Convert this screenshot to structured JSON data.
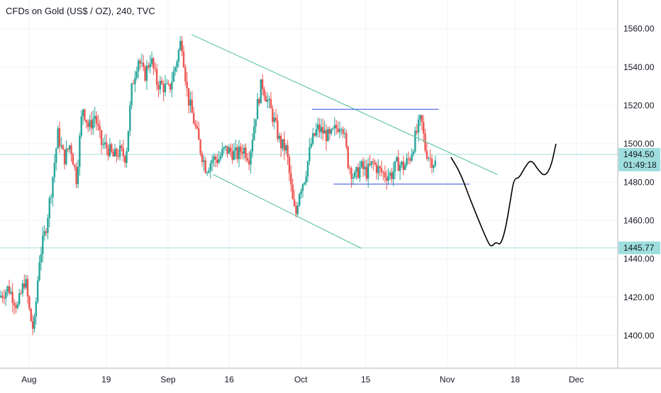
{
  "header": {
    "title": "CFDs on Gold (US$ / OZ), 240, TVC"
  },
  "colors": {
    "up_candle": "#26a69a",
    "down_candle": "#ef5350",
    "channel_line": "#66c7a0",
    "range_line": "#5b6ee6",
    "horizontal_level": "#9fdede",
    "projection": "#000000",
    "price_tag": "#9fdede",
    "grid": "#f0f3fa",
    "axis_text": "#131722"
  },
  "chart_data": {
    "type": "candlestick",
    "title": "CFDs on Gold (US$ / OZ), 240, TVC",
    "y_axis": {
      "position": "right",
      "range": [
        1383,
        1575
      ],
      "ticks": [
        1400,
        1420,
        1440,
        1460,
        1480,
        1500,
        1520,
        1540,
        1560
      ]
    },
    "x_axis": {
      "range": [
        0,
        100
      ],
      "ticks": [
        {
          "label": "Aug",
          "x": 4.7
        },
        {
          "label": "19",
          "x": 17.2
        },
        {
          "label": "Sep",
          "x": 27.2
        },
        {
          "label": "16",
          "x": 37.1
        },
        {
          "label": "Oct",
          "x": 48.7
        },
        {
          "label": "15",
          "x": 59.2
        },
        {
          "label": "Nov",
          "x": 72.4
        },
        {
          "label": "18",
          "x": 83.4
        },
        {
          "label": "Dec",
          "x": 93.3
        }
      ]
    },
    "price_labels": [
      {
        "value": "1494.50",
        "price": 1494.5
      },
      {
        "value": "01:49:18",
        "price": 1489.0
      },
      {
        "value": "1445.77",
        "price": 1445.77
      }
    ],
    "horizontal_levels": [
      1494.5,
      1445.77
    ],
    "key_points": [
      [
        0.0,
        1420
      ],
      [
        1.5,
        1425
      ],
      [
        3.0,
        1415
      ],
      [
        4.2,
        1430
      ],
      [
        5.0,
        1410
      ],
      [
        5.6,
        1402
      ],
      [
        6.5,
        1440
      ],
      [
        7.5,
        1455
      ],
      [
        8.5,
        1478
      ],
      [
        9.5,
        1505
      ],
      [
        10.5,
        1492
      ],
      [
        11.5,
        1500
      ],
      [
        12.5,
        1482
      ],
      [
        13.5,
        1520
      ],
      [
        14.5,
        1508
      ],
      [
        15.5,
        1515
      ],
      [
        16.5,
        1500
      ],
      [
        17.5,
        1498
      ],
      [
        18.5,
        1493
      ],
      [
        19.5,
        1496
      ],
      [
        20.5,
        1493
      ],
      [
        21.5,
        1530
      ],
      [
        22.5,
        1545
      ],
      [
        23.5,
        1535
      ],
      [
        24.5,
        1545
      ],
      [
        25.5,
        1532
      ],
      [
        26.5,
        1530
      ],
      [
        27.5,
        1528
      ],
      [
        28.5,
        1540
      ],
      [
        29.5,
        1555
      ],
      [
        30.5,
        1525
      ],
      [
        31.5,
        1512
      ],
      [
        32.5,
        1498
      ],
      [
        33.5,
        1487
      ],
      [
        34.5,
        1492
      ],
      [
        35.5,
        1492
      ],
      [
        36.5,
        1497
      ],
      [
        37.5,
        1496
      ],
      [
        38.5,
        1494
      ],
      [
        39.5,
        1498
      ],
      [
        40.5,
        1493
      ],
      [
        41.5,
        1515
      ],
      [
        42.5,
        1532
      ],
      [
        43.5,
        1522
      ],
      [
        44.5,
        1512
      ],
      [
        45.5,
        1500
      ],
      [
        46.5,
        1497
      ],
      [
        47.5,
        1470
      ],
      [
        48.0,
        1462
      ],
      [
        48.5,
        1475
      ],
      [
        49.5,
        1483
      ],
      [
        50.5,
        1500
      ],
      [
        51.5,
        1508
      ],
      [
        52.5,
        1506
      ],
      [
        53.5,
        1503
      ],
      [
        54.5,
        1508
      ],
      [
        55.5,
        1512
      ],
      [
        56.5,
        1490
      ],
      [
        57.5,
        1482
      ],
      [
        58.5,
        1488
      ],
      [
        59.5,
        1485
      ],
      [
        60.5,
        1490
      ],
      [
        61.5,
        1486
      ],
      [
        62.5,
        1484
      ],
      [
        63.5,
        1484
      ],
      [
        64.5,
        1490
      ],
      [
        65.5,
        1488
      ],
      [
        66.5,
        1493
      ],
      [
        67.5,
        1505
      ],
      [
        68.3,
        1513
      ],
      [
        69.0,
        1497
      ],
      [
        69.8,
        1492
      ],
      [
        70.6,
        1490
      ]
    ],
    "drawings": [
      {
        "name": "channel-upper-line",
        "kind": "trend",
        "points": [
          [
            31.0,
            1557
          ],
          [
            80.5,
            1484
          ]
        ]
      },
      {
        "name": "channel-lower-line",
        "kind": "trend",
        "points": [
          [
            34.5,
            1484
          ],
          [
            58.5,
            1445.5
          ]
        ]
      },
      {
        "name": "range-top-line",
        "kind": "range",
        "points": [
          [
            50.5,
            1518
          ],
          [
            71.0,
            1518
          ]
        ]
      },
      {
        "name": "range-bottom-line",
        "kind": "range",
        "points": [
          [
            54.0,
            1479
          ],
          [
            76.0,
            1479
          ]
        ]
      }
    ],
    "projection": [
      [
        73.0,
        1493
      ],
      [
        74.5,
        1485
      ],
      [
        76.0,
        1472
      ],
      [
        77.5,
        1460
      ],
      [
        78.8,
        1450
      ],
      [
        79.5,
        1446
      ],
      [
        80.3,
        1449
      ],
      [
        81.0,
        1447
      ],
      [
        81.8,
        1455
      ],
      [
        82.6,
        1470
      ],
      [
        83.2,
        1482
      ],
      [
        84.0,
        1482
      ],
      [
        85.0,
        1488
      ],
      [
        86.0,
        1492
      ],
      [
        87.2,
        1486
      ],
      [
        88.2,
        1483
      ],
      [
        89.2,
        1488
      ],
      [
        90.0,
        1500
      ]
    ]
  }
}
